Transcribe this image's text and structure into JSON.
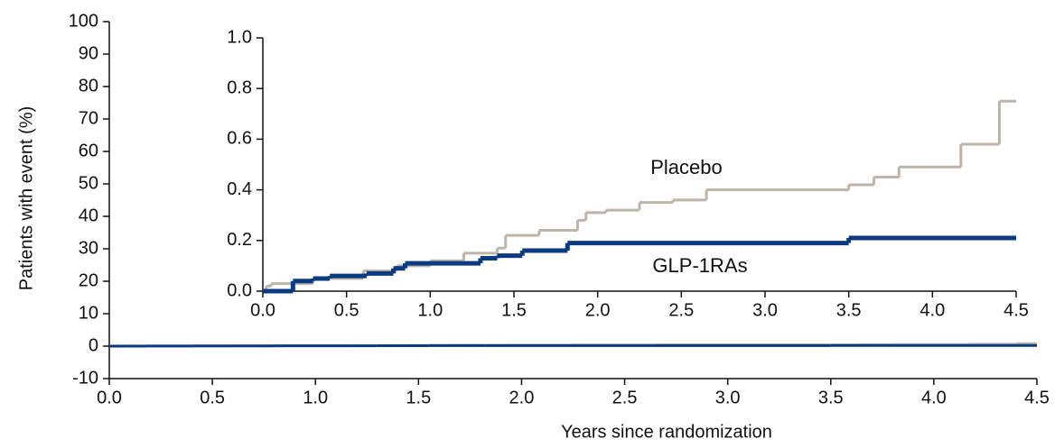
{
  "chart_data": [
    {
      "type": "step",
      "xlabel": "Years since randomization",
      "ylabel": "Patients with event (%)",
      "xlim": [
        0,
        4.5
      ],
      "xticks": [
        {
          "value": 0,
          "label": "0.0"
        },
        0.5,
        {
          "value": 1,
          "label": "1.0"
        },
        1.5,
        {
          "value": 2,
          "label": "2.0"
        },
        2.5,
        {
          "value": 3,
          "label": "3.0"
        },
        3.5,
        {
          "value": 4,
          "label": "4.0"
        },
        4.5
      ],
      "ylim": [
        -10,
        100
      ],
      "yticks": [
        -10,
        0,
        10,
        20,
        30,
        40,
        50,
        60,
        70,
        80,
        90,
        100
      ],
      "series": [
        {
          "color": "#bdb5aa",
          "x": [
            0,
            0.02,
            0.05,
            0.3,
            0.6,
            0.8,
            1.0,
            1.2,
            1.4,
            1.45,
            1.65,
            1.88,
            1.93,
            2.05,
            2.25,
            2.45,
            2.65,
            3.5,
            3.65,
            3.8,
            4.17,
            4.4,
            4.5
          ],
          "values": [
            0,
            0.02,
            0.03,
            0.05,
            0.08,
            0.1,
            0.12,
            0.15,
            0.17,
            0.22,
            0.24,
            0.28,
            0.31,
            0.32,
            0.35,
            0.36,
            0.4,
            0.42,
            0.45,
            0.49,
            0.58,
            0.75,
            0.75
          ]
        },
        {
          "color": "#0a3a82",
          "x": [
            0,
            0.18,
            0.3,
            0.4,
            0.62,
            0.78,
            0.85,
            1.3,
            1.4,
            1.55,
            1.82,
            3.5,
            4.5
          ],
          "values": [
            0,
            0.04,
            0.05,
            0.06,
            0.07,
            0.09,
            0.11,
            0.13,
            0.14,
            0.16,
            0.19,
            0.21,
            0.21
          ]
        }
      ]
    },
    {
      "type": "step",
      "xlim": [
        0,
        4.5
      ],
      "xticks": [
        {
          "value": 0,
          "label": "0.0"
        },
        0.5,
        {
          "value": 1,
          "label": "1.0"
        },
        1.5,
        {
          "value": 2,
          "label": "2.0"
        },
        2.5,
        {
          "value": 3,
          "label": "3.0"
        },
        3.5,
        {
          "value": 4,
          "label": "4.0"
        },
        4.5
      ],
      "ylim": [
        0,
        1
      ],
      "yticks": [
        {
          "value": 0,
          "label": "0.0"
        },
        0.2,
        0.4,
        0.6,
        0.8,
        {
          "value": 1,
          "label": "1.0"
        }
      ],
      "series": [
        {
          "name": "Placebo",
          "color": "#bdb5aa",
          "x": [
            0,
            0.02,
            0.05,
            0.3,
            0.6,
            0.8,
            1.0,
            1.2,
            1.4,
            1.45,
            1.65,
            1.88,
            1.93,
            2.05,
            2.25,
            2.45,
            2.65,
            3.5,
            3.65,
            3.8,
            4.17,
            4.4,
            4.5
          ],
          "values": [
            0,
            0.02,
            0.03,
            0.05,
            0.08,
            0.1,
            0.12,
            0.15,
            0.17,
            0.22,
            0.24,
            0.28,
            0.31,
            0.32,
            0.35,
            0.36,
            0.4,
            0.42,
            0.45,
            0.49,
            0.58,
            0.75,
            0.75
          ]
        },
        {
          "name": "GLP-1RAs",
          "color": "#0a3a82",
          "x": [
            0,
            0.18,
            0.3,
            0.4,
            0.62,
            0.78,
            0.85,
            1.3,
            1.4,
            1.55,
            1.82,
            3.5,
            4.5
          ],
          "values": [
            0,
            0.04,
            0.05,
            0.06,
            0.07,
            0.09,
            0.11,
            0.13,
            0.14,
            0.16,
            0.19,
            0.21,
            0.21
          ]
        }
      ]
    }
  ]
}
